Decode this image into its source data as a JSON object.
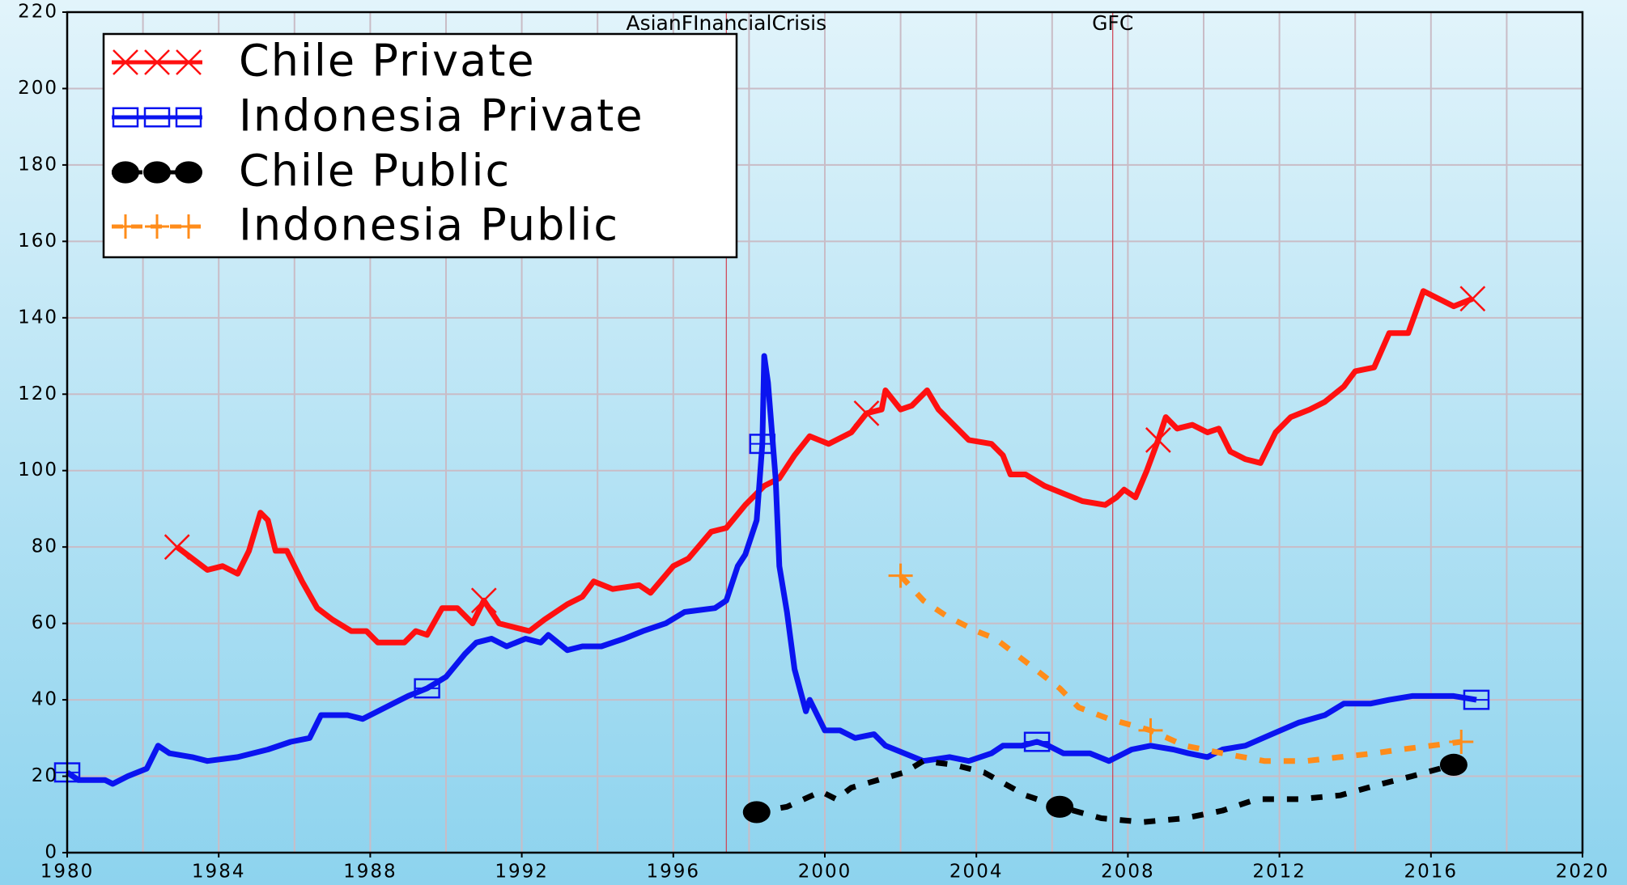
{
  "chart_data": {
    "type": "line",
    "xlim": [
      1980,
      2020
    ],
    "ylim": [
      0,
      220
    ],
    "xticks": [
      1980,
      1984,
      1988,
      1992,
      1996,
      2000,
      2004,
      2008,
      2012,
      2016,
      2020
    ],
    "xgrid": [
      1982,
      1984,
      1986,
      1988,
      1990,
      1992,
      1994,
      1996,
      1998,
      2000,
      2002,
      2004,
      2006,
      2008,
      2010,
      2012,
      2014,
      2016,
      2018
    ],
    "yticks": [
      0,
      20,
      40,
      60,
      80,
      100,
      120,
      140,
      160,
      180,
      200,
      220
    ],
    "grid": true,
    "legend": "upper left",
    "annotations": [
      {
        "text": "AsianFInancialCrisis",
        "x": 1997.4
      },
      {
        "text": "GFC",
        "x": 2007.6
      }
    ],
    "series": [
      {
        "name": "Chile Private",
        "color": "#ff1010",
        "marker": "x",
        "dashed": false,
        "x": [
          1982.9,
          1983.7,
          1984.1,
          1984.5,
          1984.8,
          1985.1,
          1985.3,
          1985.5,
          1985.8,
          1986.2,
          1986.6,
          1987,
          1987.5,
          1987.9,
          1988.2,
          1988.9,
          1989.2,
          1989.5,
          1989.9,
          1990.3,
          1990.7,
          1991,
          1991.4,
          1991.8,
          1992.2,
          1992.6,
          1993.2,
          1993.6,
          1993.9,
          1994.4,
          1995.1,
          1995.4,
          1996,
          1996.4,
          1997,
          1997.4,
          1997.9,
          1998.4,
          1998.8,
          1999.2,
          1999.6,
          2000.1,
          2000.7,
          2001.1,
          2001.5,
          2001.6,
          2002,
          2002.3,
          2002.7,
          2003,
          2003.4,
          2003.8,
          2004.4,
          2004.7,
          2004.9,
          2005.3,
          2005.8,
          2006.3,
          2006.8,
          2007.4,
          2007.7,
          2007.9,
          2008.2,
          2008.5,
          2008.8,
          2009,
          2009.3,
          2009.7,
          2010.1,
          2010.4,
          2010.7,
          2011.1,
          2011.5,
          2011.9,
          2012.3,
          2012.8,
          2013.2,
          2013.7,
          2014,
          2014.5,
          2014.9,
          2015.4,
          2015.8,
          2016.2,
          2016.6,
          2017.1
        ],
        "values": [
          80,
          74,
          75,
          73,
          79,
          89,
          87,
          79,
          79,
          71,
          64,
          61,
          58,
          58,
          55,
          55,
          58,
          57,
          64,
          64,
          60,
          66,
          60,
          59,
          58,
          61,
          65,
          67,
          71,
          69,
          70,
          68,
          75,
          77,
          84,
          85,
          91,
          96,
          98,
          104,
          109,
          107,
          110,
          115,
          116,
          121,
          116,
          117,
          121,
          116,
          112,
          108,
          107,
          104,
          99,
          99,
          96,
          94,
          92,
          91,
          93,
          95,
          93,
          100,
          108,
          114,
          111,
          112,
          110,
          111,
          105,
          103,
          102,
          110,
          114,
          116,
          118,
          122,
          126,
          127,
          136,
          136,
          147,
          145,
          143,
          145
        ]
      },
      {
        "name": "Indonesia Private",
        "color": "#0a14f0",
        "marker": "square",
        "dashed": false,
        "x": [
          1980,
          1980.3,
          1981,
          1981.2,
          1981.6,
          1982.1,
          1982.4,
          1982.7,
          1983.3,
          1983.7,
          1984.5,
          1985.3,
          1985.9,
          1986.4,
          1986.7,
          1987,
          1987.4,
          1987.8,
          1988.2,
          1988.6,
          1989,
          1989.5,
          1990,
          1990.5,
          1990.8,
          1991.2,
          1991.6,
          1992.1,
          1992.5,
          1992.7,
          1993.2,
          1993.6,
          1994.1,
          1994.7,
          1995.2,
          1995.8,
          1996.3,
          1997.1,
          1997.4,
          1997.7,
          1997.9,
          1998.2,
          1998.35,
          1998.4,
          1998.5,
          1998.7,
          1998.8,
          1999,
          1999.2,
          1999.5,
          1999.6,
          2000,
          2000.4,
          2000.8,
          2001.3,
          2001.6,
          2002.1,
          2002.6,
          2003.3,
          2003.8,
          2004.4,
          2004.7,
          2005.2,
          2005.6,
          2005.9,
          2006.3,
          2007,
          2007.5,
          2008.1,
          2008.6,
          2009.2,
          2009.6,
          2010.1,
          2010.5,
          2011.1,
          2011.8,
          2012.5,
          2013.2,
          2013.7,
          2014.4,
          2014.9,
          2015.5,
          2016,
          2016.6,
          2017.2
        ],
        "values": [
          21,
          19,
          19,
          18,
          20,
          22,
          28,
          26,
          25,
          24,
          25,
          27,
          29,
          30,
          36,
          36,
          36,
          35,
          37,
          39,
          41,
          43,
          46,
          52,
          55,
          56,
          54,
          56,
          55,
          57,
          53,
          54,
          54,
          56,
          58,
          60,
          63,
          64,
          66,
          75,
          78,
          87,
          107,
          130,
          123,
          98,
          75,
          63,
          48,
          37,
          40,
          32,
          32,
          30,
          31,
          28,
          26,
          24,
          25,
          24,
          26,
          28,
          28,
          29,
          28,
          26,
          26,
          24,
          27,
          28,
          27,
          26,
          25,
          27,
          28,
          31,
          34,
          36,
          39,
          39,
          40,
          41,
          41,
          41,
          40
        ]
      },
      {
        "name": "Chile Public",
        "color": "#000000",
        "marker": "circle",
        "dashed": true,
        "x": [
          1998.2,
          1999,
          1999.9,
          2000.3,
          2000.7,
          2001.4,
          2002.1,
          2002.6,
          2003.4,
          2004.2,
          2005.3,
          2006.2,
          2007.3,
          2008.4,
          2009.5,
          2010.5,
          2011.4,
          2012.5,
          2013.6,
          2014.7,
          2015.5,
          2016.6
        ],
        "values": [
          10.6,
          12,
          16,
          14,
          17,
          19,
          21,
          24,
          23,
          21,
          15,
          12,
          9,
          8,
          9,
          11,
          14,
          14,
          15,
          18,
          20,
          23
        ]
      },
      {
        "name": "Indonesia Public",
        "color": "#ff8c1a",
        "marker": "plus",
        "dashed": true,
        "x": [
          2002,
          2002.6,
          2003.2,
          2004,
          2004.5,
          2005.3,
          2006.2,
          2006.7,
          2007.5,
          2008.6,
          2009.5,
          2010.5,
          2011.6,
          2012.7,
          2013.6,
          2014.5,
          2015.2,
          2016,
          2016.8
        ],
        "values": [
          72.5,
          66,
          62,
          58,
          56,
          50,
          43,
          38,
          35,
          32,
          28,
          26,
          24,
          24,
          25,
          26,
          27,
          28,
          29
        ]
      }
    ]
  }
}
